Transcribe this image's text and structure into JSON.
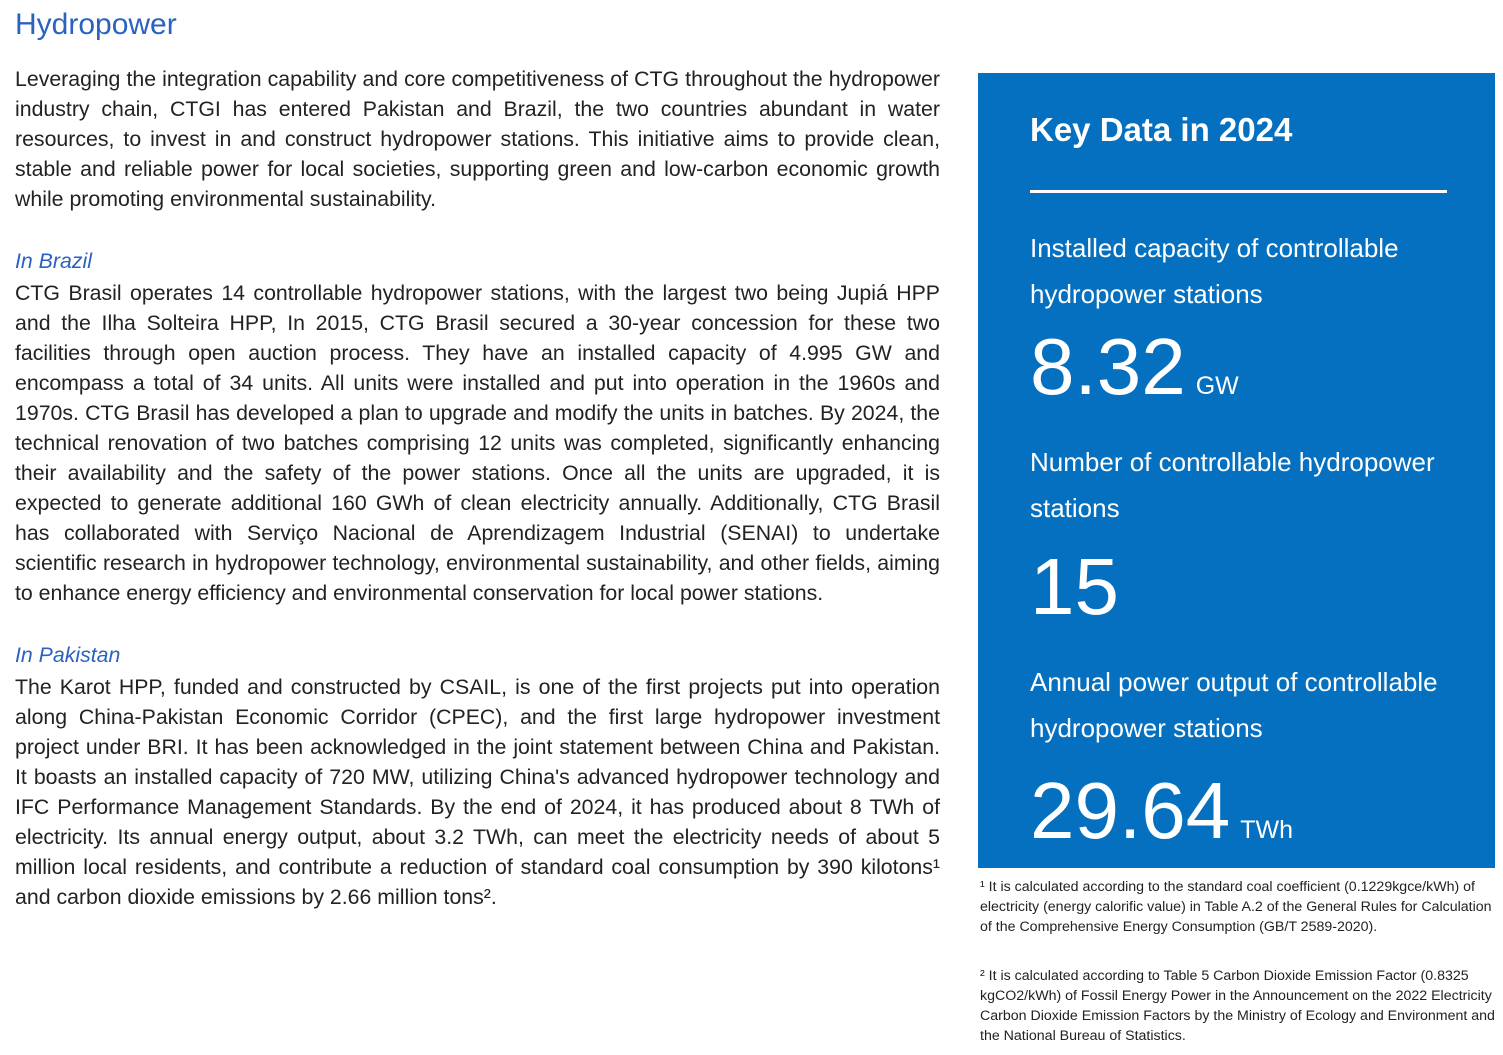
{
  "title": "Hydropower",
  "intro": "Leveraging the integration capability and core competitiveness of CTG throughout the hydropower industry chain, CTGI has entered Pakistan and Brazil, the two countries abundant in water resources, to invest in and construct hydropower stations. This initiative aims to provide clean, stable and reliable power for local societies, supporting green and low-carbon economic growth while promoting environmental sustainability.",
  "brazil": {
    "heading": "In Brazil",
    "body": "CTG Brasil operates 14 controllable hydropower stations, with the largest two being Jupiá HPP and the Ilha Solteira HPP, In 2015, CTG Brasil secured a 30-year concession for these two facilities through open auction process. They have an installed capacity of 4.995 GW and encompass a total of 34 units. All units were installed and put into operation in the 1960s and 1970s. CTG Brasil has developed a plan to upgrade and modify the units in batches. By 2024, the technical renovation of two batches comprising 12 units was completed, significantly enhancing their availability and the safety of the power stations. Once all the units are upgraded, it is expected to generate additional 160 GWh of clean electricity annually. Additionally, CTG Brasil has collaborated with Serviço Nacional de Aprendizagem Industrial (SENAI) to undertake scientific research in hydropower technology, environmental sustainability, and other fields, aiming to enhance energy efficiency and environmental conservation for local power stations."
  },
  "pakistan": {
    "heading": "In Pakistan",
    "body": "The Karot HPP, funded and constructed by CSAIL, is one of the first projects put into operation along China-Pakistan Economic Corridor (CPEC), and the first large hydropower investment project under BRI. It has been acknowledged in the joint statement between China and Pakistan. It boasts an installed capacity of 720 MW, utilizing China's advanced hydropower technology and IFC Performance Management Standards. By the end of 2024, it has produced about 8 TWh of electricity. Its annual energy output, about 3.2 TWh, can meet the electricity needs of about 5 million local residents, and contribute a reduction of standard coal consumption by 390 kilotons¹ and carbon dioxide emissions by 2.66 million tons²."
  },
  "key_data": {
    "title": "Key Data in 2024",
    "background_color": "#0470bf",
    "items": [
      {
        "label": "Installed capacity of controllable hydropower stations",
        "value": "8.32",
        "unit": "GW"
      },
      {
        "label": "Number of controllable hydropower stations",
        "value": "15",
        "unit": ""
      },
      {
        "label": "Annual power output of controllable hydropower stations",
        "value": "29.64",
        "unit": "TWh"
      }
    ]
  },
  "footnotes": [
    "¹ It is calculated according to the standard coal coefficient (0.1229kgce/kWh) of electricity (energy calorific value) in Table A.2 of the General Rules for Calculation of the Comprehensive Energy Consumption (GB/T 2589-2020).",
    "² It is calculated according to Table 5 Carbon Dioxide Emission Factor (0.8325 kgCO2/kWh) of Fossil Energy Power in the Announcement on the 2022 Electricity Carbon Dioxide Emission Factors by the Ministry of Ecology and Environment and the National Bureau of Statistics."
  ]
}
